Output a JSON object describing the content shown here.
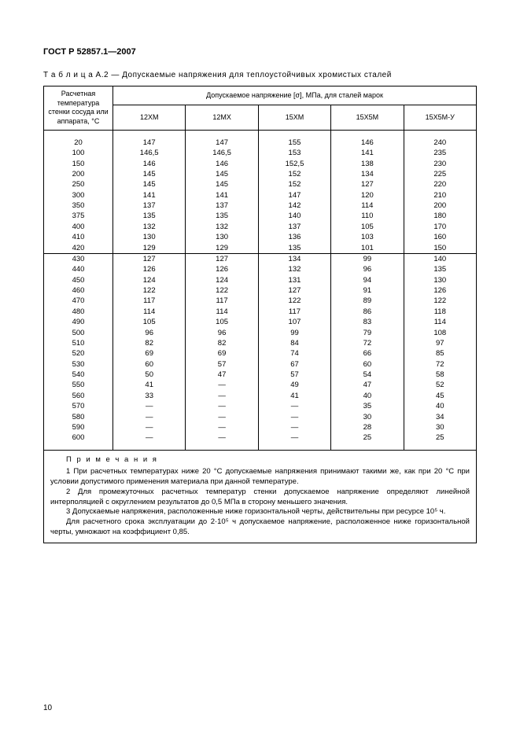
{
  "doc_header": "ГОСТ Р 52857.1—2007",
  "caption": "Т а б л и ц а  А.2 — Допускаемые напряжения для теплоустойчивых хромистых сталей",
  "colhead_rowhead": "Расчетная температура стенки сосуда или аппарата, °C",
  "colhead_super": "Допускаемое напряжение [σ], МПа, для сталей марок",
  "columns": [
    "12ХМ",
    "12МХ",
    "15ХМ",
    "15Х5М",
    "15Х5М-У"
  ],
  "rows": [
    {
      "t": "20",
      "v": [
        "147",
        "147",
        "155",
        "146",
        "240"
      ]
    },
    {
      "t": "100",
      "v": [
        "146,5",
        "146,5",
        "153",
        "141",
        "235"
      ]
    },
    {
      "t": "150",
      "v": [
        "146",
        "146",
        "152,5",
        "138",
        "230"
      ]
    },
    {
      "t": "200",
      "v": [
        "145",
        "145",
        "152",
        "134",
        "225"
      ]
    },
    {
      "t": "250",
      "v": [
        "145",
        "145",
        "152",
        "127",
        "220"
      ]
    },
    {
      "t": "300",
      "v": [
        "141",
        "141",
        "147",
        "120",
        "210"
      ]
    },
    {
      "t": "350",
      "v": [
        "137",
        "137",
        "142",
        "114",
        "200"
      ]
    },
    {
      "t": "375",
      "v": [
        "135",
        "135",
        "140",
        "110",
        "180"
      ]
    },
    {
      "t": "400",
      "v": [
        "132",
        "132",
        "137",
        "105",
        "170"
      ]
    },
    {
      "t": "410",
      "v": [
        "130",
        "130",
        "136",
        "103",
        "160"
      ]
    },
    {
      "t": "420",
      "v": [
        "129",
        "129",
        "135",
        "101",
        "150"
      ],
      "sep": true
    },
    {
      "t": "430",
      "v": [
        "127",
        "127",
        "134",
        "99",
        "140"
      ]
    },
    {
      "t": "440",
      "v": [
        "126",
        "126",
        "132",
        "96",
        "135"
      ]
    },
    {
      "t": "450",
      "v": [
        "124",
        "124",
        "131",
        "94",
        "130"
      ]
    },
    {
      "t": "460",
      "v": [
        "122",
        "122",
        "127",
        "91",
        "126"
      ]
    },
    {
      "t": "470",
      "v": [
        "117",
        "117",
        "122",
        "89",
        "122"
      ]
    },
    {
      "t": "480",
      "v": [
        "114",
        "114",
        "117",
        "86",
        "118"
      ]
    },
    {
      "t": "490",
      "v": [
        "105",
        "105",
        "107",
        "83",
        "114"
      ]
    },
    {
      "t": "500",
      "v": [
        "96",
        "96",
        "99",
        "79",
        "108"
      ]
    },
    {
      "t": "510",
      "v": [
        "82",
        "82",
        "84",
        "72",
        "97"
      ]
    },
    {
      "t": "520",
      "v": [
        "69",
        "69",
        "74",
        "66",
        "85"
      ]
    },
    {
      "t": "530",
      "v": [
        "60",
        "57",
        "67",
        "60",
        "72"
      ]
    },
    {
      "t": "540",
      "v": [
        "50",
        "47",
        "57",
        "54",
        "58"
      ]
    },
    {
      "t": "550",
      "v": [
        "41",
        "—",
        "49",
        "47",
        "52"
      ]
    },
    {
      "t": "560",
      "v": [
        "33",
        "—",
        "41",
        "40",
        "45"
      ]
    },
    {
      "t": "570",
      "v": [
        "—",
        "—",
        "—",
        "35",
        "40"
      ]
    },
    {
      "t": "580",
      "v": [
        "—",
        "—",
        "—",
        "30",
        "34"
      ]
    },
    {
      "t": "590",
      "v": [
        "—",
        "—",
        "—",
        "28",
        "30"
      ]
    },
    {
      "t": "600",
      "v": [
        "—",
        "—",
        "—",
        "25",
        "25"
      ]
    }
  ],
  "notes_title": "П р и м е ч а н и я",
  "notes": [
    "1 При расчетных температурах ниже 20 °C допускаемые напряжения принимают такими же,  как при 20 °C при условии допустимого применения материала при данной температуре.",
    "2 Для промежуточных расчетных температур стенки допускаемое напряжение определяют линейной интерполяцией с округлением результатов до 0,5 МПа в сторону меньшего значения.",
    "3 Допускаемые напряжения, расположенные ниже горизонтальной черты, действительны при ресурсе 10⁵ ч.",
    "Для расчетного срока эксплуатации до 2·10⁵ ч допускаемое напряжение, расположенное ниже горизонтальной черты, умножают на коэффициент 0,85."
  ],
  "page_number": "10"
}
